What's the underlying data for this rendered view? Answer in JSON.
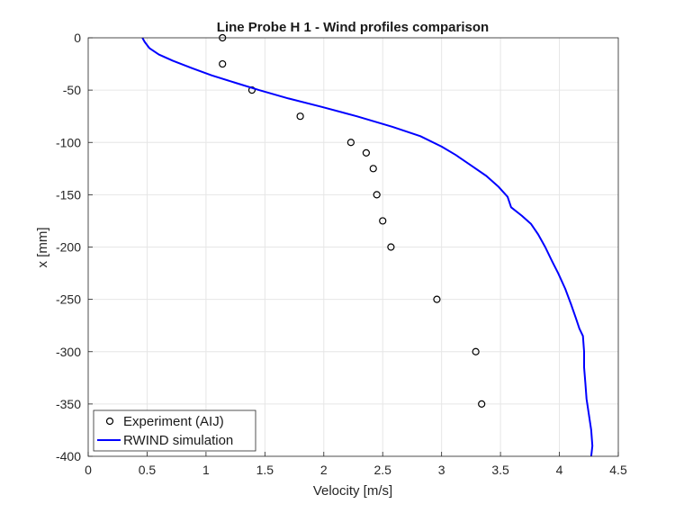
{
  "chart_data": {
    "type": "line",
    "title": "Line Probe H 1 - Wind profiles comparison",
    "xlabel": "Velocity [m/s]",
    "ylabel": "x [mm]",
    "xlim": [
      0,
      4.5
    ],
    "ylim": [
      -400,
      0
    ],
    "xticks": [
      "0",
      "0.5",
      "1",
      "1.5",
      "2",
      "2.5",
      "3",
      "3.5",
      "4",
      "4.5"
    ],
    "yticks": [
      "0",
      "-50",
      "-100",
      "-150",
      "-200",
      "-250",
      "-300",
      "-350",
      "-400"
    ],
    "grid": true,
    "legend_placement": "bottom-left",
    "series": [
      {
        "name": "Experiment (AIJ)",
        "type": "scatter",
        "marker": "open-circle",
        "color": "#000000",
        "x": [
          1.14,
          1.14,
          1.39,
          1.8,
          2.23,
          2.36,
          2.42,
          2.45,
          2.5,
          2.57,
          2.96,
          3.29,
          3.34
        ],
        "y": [
          0,
          -25,
          -50,
          -75,
          -100,
          -110,
          -125,
          -150,
          -175,
          -200,
          -250,
          -300,
          -350
        ]
      },
      {
        "name": "RWIND simulation",
        "type": "line",
        "color": "#0000ff",
        "x": [
          0.46,
          0.48,
          0.52,
          0.6,
          0.72,
          0.88,
          1.05,
          1.25,
          1.45,
          1.7,
          1.98,
          2.28,
          2.58,
          2.82,
          3.0,
          3.12,
          3.25,
          3.38,
          3.48,
          3.56,
          3.59,
          3.68,
          3.76,
          3.82,
          3.88,
          3.94,
          3.99,
          4.05,
          4.1,
          4.14,
          4.17,
          4.2,
          4.21,
          4.21,
          4.22,
          4.23,
          4.25,
          4.27,
          4.28,
          4.27
        ],
        "y": [
          0,
          -4,
          -10,
          -16,
          -22,
          -29,
          -36,
          -43,
          -50,
          -58,
          -66,
          -75,
          -85,
          -94,
          -104,
          -112,
          -122,
          -132,
          -142,
          -152,
          -162,
          -170,
          -178,
          -188,
          -200,
          -214,
          -225,
          -240,
          -255,
          -268,
          -278,
          -285,
          -300,
          -315,
          -330,
          -345,
          -360,
          -375,
          -390,
          -400
        ]
      }
    ]
  }
}
